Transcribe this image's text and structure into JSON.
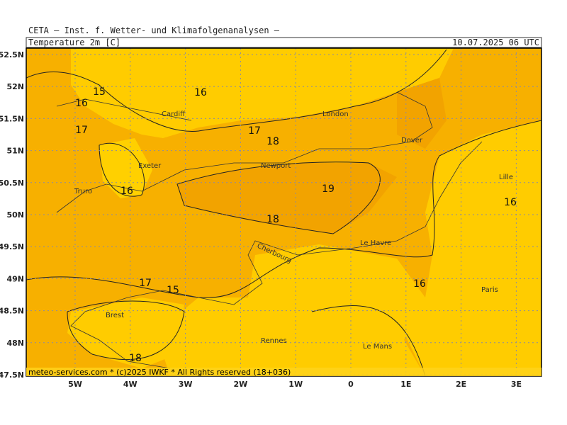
{
  "header": {
    "title": "CETA — Inst. f. Wetter- und Klimafolgenanalysen —",
    "field": "Temperature_2m_[C]",
    "valid_time": "10.07.2025 06 UTC"
  },
  "lat_labels": [
    "52.5N",
    "52N",
    "51.5N",
    "51N",
    "50.5N",
    "50N",
    "49.5N",
    "49N",
    "48.5N",
    "48N",
    "47.5N"
  ],
  "lon_labels": [
    "5W",
    "4W",
    "3W",
    "2W",
    "1W",
    "0",
    "1E",
    "2E",
    "3E"
  ],
  "cities": [
    "Cardiff",
    "London",
    "Dover",
    "Exeter",
    "Newport",
    "Truro",
    "Lille",
    "Le Havre",
    "Cherbourg",
    "Paris",
    "Brest",
    "Rennes",
    "Le Mans"
  ],
  "contour_labels": [
    15,
    16,
    16,
    17,
    17,
    18,
    19,
    18,
    16,
    16,
    17,
    15,
    18,
    16
  ],
  "footer": "meteo-services.com * (c)2025 IWKF * All Rights reserved (18+036)"
}
